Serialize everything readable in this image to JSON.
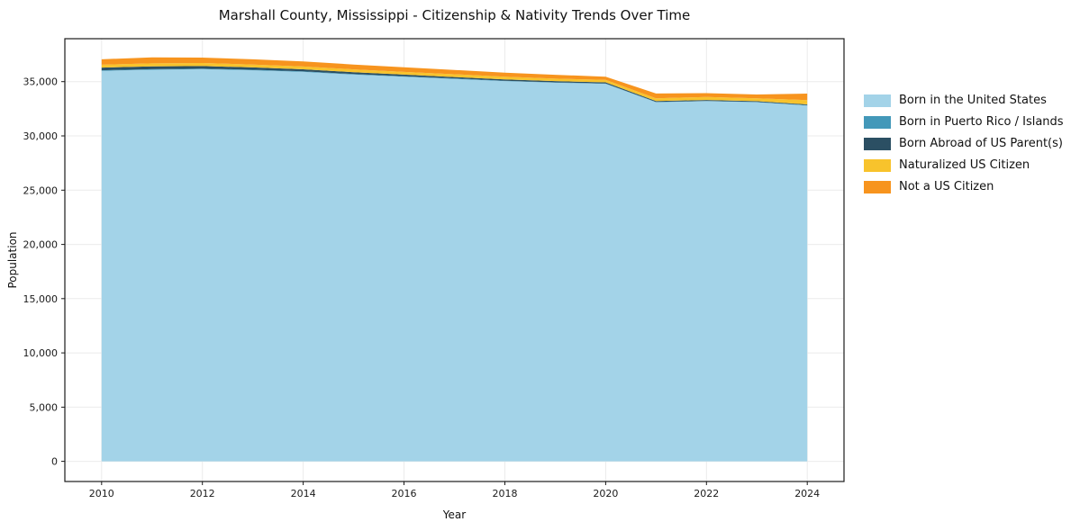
{
  "chart_data": {
    "type": "area",
    "stacked": true,
    "title": "Marshall County, Mississippi - Citizenship & Nativity Trends Over Time",
    "xlabel": "Year",
    "ylabel": "Population",
    "x": [
      2010,
      2011,
      2012,
      2013,
      2014,
      2015,
      2016,
      2017,
      2018,
      2019,
      2020,
      2021,
      2022,
      2023,
      2024
    ],
    "series": [
      {
        "name": "Born in the United States",
        "color": "#a3d3e8",
        "values": [
          36000,
          36100,
          36150,
          36050,
          35900,
          35650,
          35450,
          35250,
          35050,
          34900,
          34800,
          33100,
          33200,
          33100,
          32800
        ]
      },
      {
        "name": "Born in Puerto Rico / Islands",
        "color": "#4398b9",
        "values": [
          50,
          50,
          50,
          50,
          50,
          50,
          50,
          50,
          40,
          40,
          40,
          30,
          30,
          30,
          40
        ]
      },
      {
        "name": "Born Abroad of US Parent(s)",
        "color": "#2b4f63",
        "values": [
          250,
          260,
          240,
          210,
          190,
          170,
          150,
          130,
          120,
          110,
          100,
          80,
          80,
          70,
          60
        ]
      },
      {
        "name": "Naturalized US Citizen",
        "color": "#f8c32c",
        "values": [
          260,
          280,
          280,
          270,
          260,
          260,
          250,
          250,
          240,
          230,
          220,
          250,
          280,
          270,
          400
        ]
      },
      {
        "name": "Not a US Citizen",
        "color": "#f7941e",
        "values": [
          500,
          550,
          500,
          480,
          460,
          450,
          420,
          400,
          380,
          350,
          300,
          450,
          350,
          350,
          600
        ]
      }
    ],
    "xticks": [
      2010,
      2012,
      2014,
      2016,
      2018,
      2020,
      2022,
      2024
    ],
    "yticks": [
      0,
      5000,
      10000,
      15000,
      20000,
      25000,
      30000,
      35000
    ],
    "xlim": [
      2009.27,
      2024.73
    ],
    "ylim": [
      -1855,
      38960
    ],
    "grid": true,
    "legend_position": "right"
  }
}
